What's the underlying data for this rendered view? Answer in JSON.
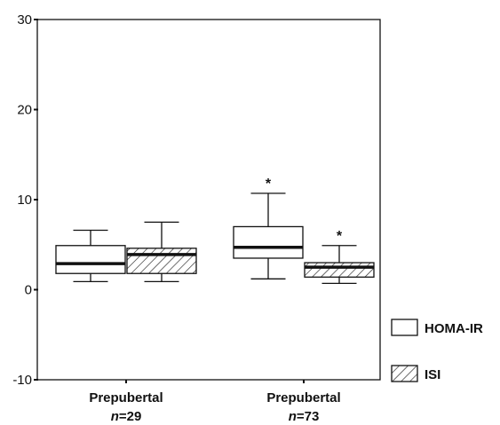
{
  "chart_data": {
    "type": "boxplot",
    "ylim": [
      -10,
      30
    ],
    "yticks": [
      -10,
      0,
      10,
      20,
      30
    ],
    "grid": false,
    "legend_position": "bottom-right",
    "categories": [
      {
        "label": "Prepubertal",
        "n_prefix": "n",
        "n_value": "=29"
      },
      {
        "label": "Prepubertal",
        "n_prefix": "n",
        "n_value": "=73"
      }
    ],
    "series": [
      {
        "name": "HOMA-IR",
        "pattern": "none",
        "boxes": [
          {
            "whisker_low": 0.9,
            "q1": 1.8,
            "median": 2.9,
            "q3": 4.9,
            "whisker_high": 6.6,
            "annotation": ""
          },
          {
            "whisker_low": 1.2,
            "q1": 3.5,
            "median": 4.7,
            "q3": 7.0,
            "whisker_high": 10.7,
            "annotation": "*"
          }
        ]
      },
      {
        "name": "ISI",
        "pattern": "hatched",
        "boxes": [
          {
            "whisker_low": 0.9,
            "q1": 1.8,
            "median": 3.9,
            "q3": 4.6,
            "whisker_high": 7.5,
            "annotation": ""
          },
          {
            "whisker_low": 0.7,
            "q1": 1.4,
            "median": 2.5,
            "q3": 3.0,
            "whisker_high": 4.9,
            "annotation": "*"
          }
        ]
      }
    ]
  }
}
